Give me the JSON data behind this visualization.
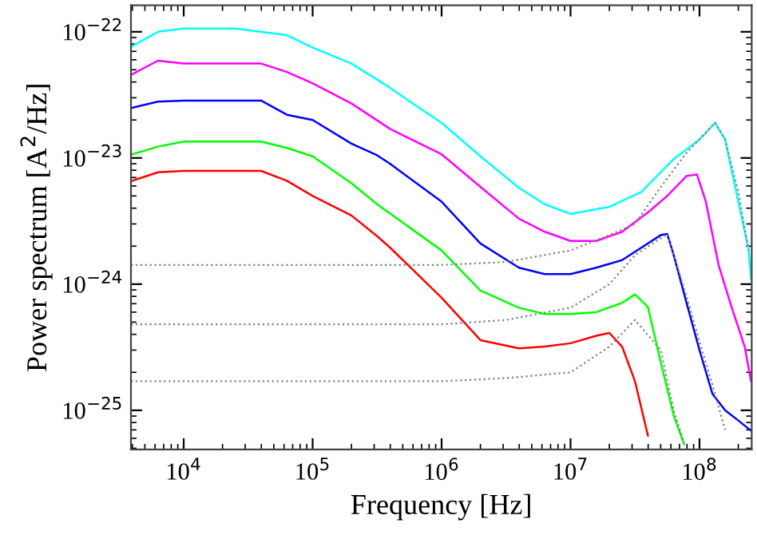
{
  "chart_data": {
    "type": "line",
    "xlabel": "Frequency [Hz]",
    "ylabel": "Power spectrum [A$^{2}$/Hz]",
    "log": "xy",
    "grid": false,
    "legend": false,
    "marker": "none",
    "xlim": [
      3900,
      254000000
    ],
    "ylim": [
      4.9e-26,
      1.62e-22
    ],
    "xticks": [
      {
        "value": 10000,
        "label": "10$^{4}$"
      },
      {
        "value": 100000,
        "label": "10$^{5}$"
      },
      {
        "value": 1000000,
        "label": "10$^{6}$"
      },
      {
        "value": 10000000,
        "label": "10$^{7}$"
      },
      {
        "value": 100000000,
        "label": "10$^{8}$"
      }
    ],
    "yticks": [
      {
        "value": 1e-25,
        "label": "10$^{−25}$"
      },
      {
        "value": 1e-24,
        "label": "10$^{−24}$"
      },
      {
        "value": 1e-23,
        "label": "10$^{−23}$"
      },
      {
        "value": 1e-22,
        "label": "10$^{−22}$"
      }
    ],
    "series": [
      {
        "color": "#00ffff",
        "line_style": "solid",
        "x": [
          3980,
          6310,
          10000,
          25100,
          63100,
          100000,
          200000,
          398000,
          631000,
          1000000,
          2000000,
          3980000,
          6310000,
          10000000,
          20000000,
          35500000,
          63100000,
          100000000,
          132000000,
          158000000,
          200000000,
          240000000,
          251000000
        ],
        "values": [
          7.7e-23,
          1e-22,
          1.06e-22,
          1.06e-22,
          9.4e-23,
          7.5e-23,
          5.6e-23,
          3.6e-23,
          2.6e-23,
          1.9e-23,
          1.03e-23,
          5.8e-24,
          4.3e-24,
          3.6e-24,
          4.1e-24,
          5.4e-24,
          9.8e-24,
          1.4e-23,
          1.9e-23,
          1.4e-23,
          4.5e-24,
          1.9e-24,
          1.1e-24
        ]
      },
      {
        "color": "#ff00ff",
        "line_style": "solid",
        "x": [
          3980,
          6310,
          10000,
          39800,
          63100,
          100000,
          200000,
          398000,
          1000000,
          2000000,
          3980000,
          6310000,
          10000000,
          15800000,
          25100000,
          39800000,
          56200000,
          79400000,
          95500000,
          112000000,
          141000000,
          178000000,
          224000000,
          251000000
        ],
        "values": [
          4.6e-23,
          5.9e-23,
          5.6e-23,
          5.6e-23,
          4.8e-23,
          3.9e-23,
          2.7e-23,
          1.7e-23,
          1.07e-23,
          5.9e-24,
          3.3e-24,
          2.6e-24,
          2.2e-24,
          2.2e-24,
          2.6e-24,
          3.7e-24,
          5e-24,
          7.2e-24,
          7.4e-24,
          4.5e-24,
          1.4e-24,
          6.5e-25,
          3.2e-25,
          1.7e-25
        ]
      },
      {
        "color": "#0000ff",
        "line_style": "solid",
        "x": [
          3980,
          6310,
          10000,
          39800,
          63100,
          100000,
          200000,
          316000,
          398000,
          1000000,
          2000000,
          3980000,
          6310000,
          10000000,
          15800000,
          25100000,
          35500000,
          50100000,
          56200000,
          63100000,
          79400000,
          100000000,
          126000000,
          158000000,
          200000000,
          251000000
        ],
        "values": [
          2.5e-23,
          2.8e-23,
          2.85e-23,
          2.85e-23,
          2.2e-23,
          2e-23,
          1.3e-23,
          1.05e-23,
          9e-24,
          4.5e-24,
          2.1e-24,
          1.35e-24,
          1.2e-24,
          1.2e-24,
          1.35e-24,
          1.55e-24,
          1.95e-24,
          2.45e-24,
          2.5e-24,
          1.7e-24,
          7.1e-25,
          3e-25,
          1.35e-25,
          1e-25,
          8.3e-26,
          6.9e-26
        ]
      },
      {
        "color": "#00ff00",
        "line_style": "solid",
        "x": [
          3980,
          6310,
          10000,
          39800,
          63100,
          100000,
          200000,
          316000,
          1000000,
          2000000,
          3980000,
          6310000,
          10000000,
          15800000,
          25100000,
          31600000,
          39800000,
          50100000,
          63100000,
          75900000
        ],
        "values": [
          1.07e-23,
          1.23e-23,
          1.35e-23,
          1.35e-23,
          1.2e-23,
          1.03e-23,
          6.3e-24,
          4.3e-24,
          1.85e-24,
          8.9e-25,
          6.5e-25,
          5.8e-25,
          5.8e-25,
          6e-25,
          7.1e-25,
          8.3e-25,
          6.6e-25,
          2.4e-25,
          9.1e-26,
          5.4e-26
        ]
      },
      {
        "color": "#ff0000",
        "line_style": "solid",
        "x": [
          3980,
          6310,
          10000,
          39800,
          63100,
          100000,
          200000,
          316000,
          398000,
          1000000,
          2000000,
          3980000,
          6310000,
          10000000,
          15800000,
          20000000,
          25100000,
          31600000,
          39800000
        ],
        "values": [
          6.6e-24,
          7.7e-24,
          7.9e-24,
          7.9e-24,
          6.6e-24,
          5e-24,
          3.5e-24,
          2.4e-24,
          1.95e-24,
          7.8e-25,
          3.6e-25,
          3.1e-25,
          3.2e-25,
          3.4e-25,
          3.9e-25,
          4.1e-25,
          3.2e-25,
          1.7e-25,
          6.3e-26
        ]
      },
      {
        "color": "#808080",
        "line_style": "dotted",
        "x": [
          3900,
          1000000,
          3160000,
          10000000,
          20000000,
          31600000,
          50100000,
          79400000,
          132000000,
          158000000,
          200000000,
          240000000
        ],
        "values": [
          1.42e-24,
          1.42e-24,
          1.5e-24,
          1.85e-24,
          2.45e-24,
          3e-24,
          5.9e-24,
          1.1e-23,
          1.9e-23,
          1.4e-23,
          5.4e-24,
          1.85e-24
        ]
      },
      {
        "color": "#808080",
        "line_style": "dotted",
        "x": [
          3900,
          1000000,
          3160000,
          10000000,
          20000000,
          31600000,
          56200000,
          79400000,
          100000000,
          126000000,
          158000000
        ],
        "values": [
          4.8e-25,
          4.8e-25,
          5.2e-25,
          6.5e-25,
          1e-24,
          1.7e-24,
          2.5e-24,
          8e-25,
          3.5e-25,
          1.6e-25,
          7e-26
        ]
      },
      {
        "color": "#808080",
        "line_style": "dotted",
        "x": [
          3900,
          1000000,
          3160000,
          10000000,
          20000000,
          31600000,
          50100000,
          63100000,
          75900000
        ],
        "values": [
          1.7e-25,
          1.7e-25,
          1.8e-25,
          2e-25,
          3.2e-25,
          5.2e-25,
          3e-25,
          1e-25,
          5.5e-26
        ]
      }
    ]
  }
}
